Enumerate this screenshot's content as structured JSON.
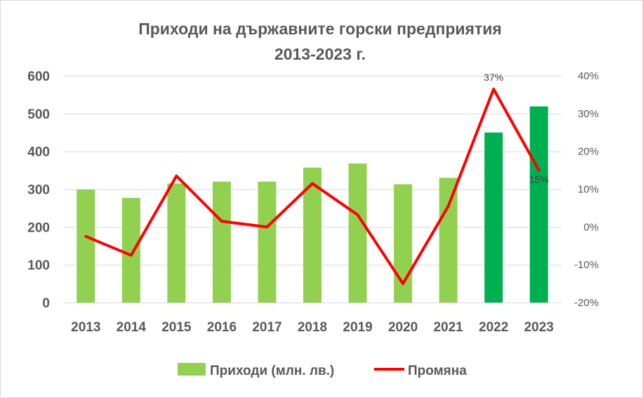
{
  "chart_data": {
    "type": "bar",
    "title_lines": [
      "Приходи на държавните горски предприятия",
      "2013-2023 г."
    ],
    "categories": [
      "2013",
      "2014",
      "2015",
      "2016",
      "2017",
      "2018",
      "2019",
      "2020",
      "2021",
      "2022",
      "2023"
    ],
    "series": [
      {
        "name": "Приходи (млн. лв.)",
        "type": "bar",
        "axis": "left",
        "values": [
          299,
          277,
          315,
          320,
          320,
          357,
          368,
          313,
          330,
          450,
          519
        ],
        "colors": [
          "#92d050",
          "#92d050",
          "#92d050",
          "#92d050",
          "#92d050",
          "#92d050",
          "#92d050",
          "#92d050",
          "#92d050",
          "#00b050",
          "#00b050"
        ]
      },
      {
        "name": "Промяна",
        "type": "line",
        "axis": "right",
        "values": [
          -2.5,
          -7.5,
          13.5,
          1.5,
          0.0,
          11.5,
          3.2,
          -15.0,
          5.5,
          36.5,
          15.0
        ],
        "color": "#ff0000"
      }
    ],
    "data_labels": [
      {
        "category": "2022",
        "series": "Промяна",
        "text": "37%"
      },
      {
        "category": "2023",
        "series": "Промяна",
        "text": "15%"
      }
    ],
    "y_left": {
      "min": 0,
      "max": 600,
      "ticks": [
        "0",
        "100",
        "200",
        "300",
        "400",
        "500",
        "600"
      ]
    },
    "y_right": {
      "min": -20,
      "max": 40,
      "ticks": [
        "-20%",
        "-10%",
        "0%",
        "10%",
        "20%",
        "30%",
        "40%"
      ]
    },
    "grid": true,
    "legend_position": "bottom"
  }
}
